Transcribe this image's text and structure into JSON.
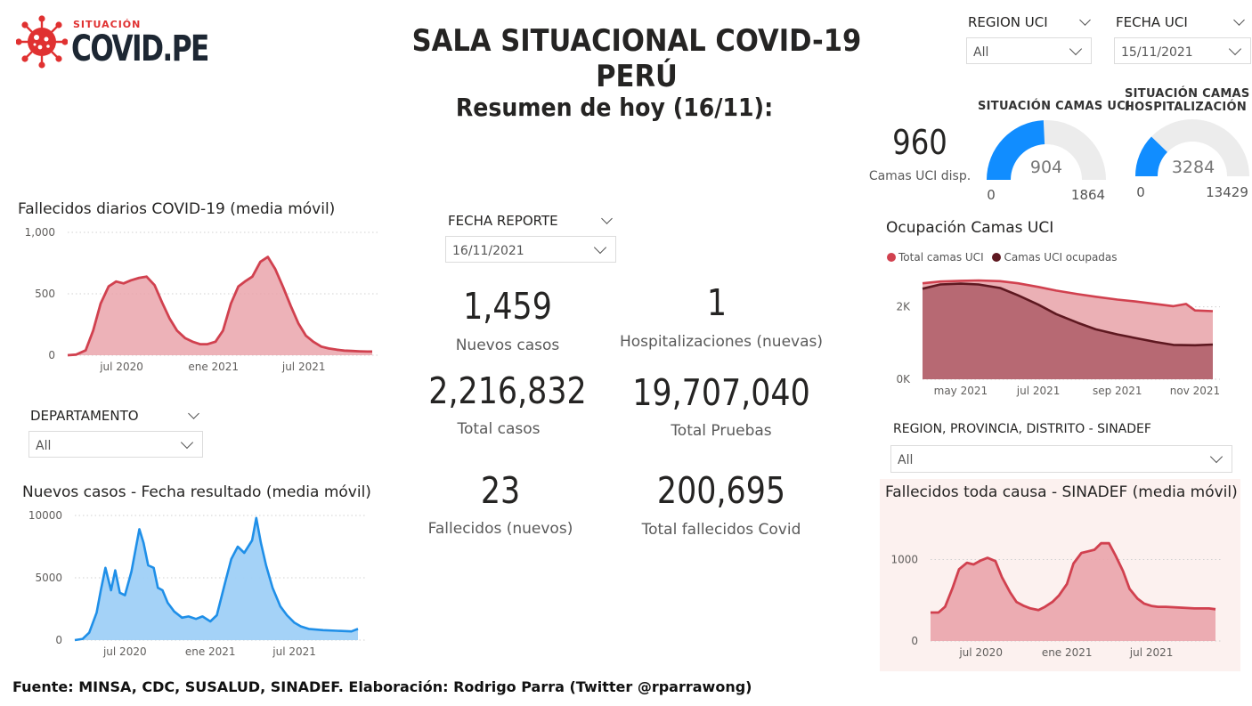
{
  "logo": {
    "small": "SITUACIÓN",
    "big": "COVID.PE"
  },
  "title": "SALA SITUACIONAL COVID-19 PERÚ",
  "subtitle": "Resumen de hoy (16/11):",
  "filters": {
    "region_uci": {
      "label": "REGION UCI",
      "value": "All"
    },
    "fecha_uci": {
      "label": "FECHA UCI",
      "value": "15/11/2021"
    },
    "fecha_reporte": {
      "label": "FECHA REPORTE",
      "value": "16/11/2021"
    },
    "departamento": {
      "label": "DEPARTAMENTO",
      "value": "All"
    },
    "region_sinadef": {
      "label": "REGION, PROVINCIA, DISTRITO - SINADEF",
      "value": "All"
    }
  },
  "kpis": {
    "nuevos_casos": {
      "value": "1,459",
      "label": "Nuevos casos"
    },
    "hospitalizaciones": {
      "value": "1",
      "label": "Hospitalizaciones (nuevas)"
    },
    "total_casos": {
      "value": "2,216,832",
      "label": "Total casos"
    },
    "total_pruebas": {
      "value": "19,707,040",
      "label": "Total Pruebas"
    },
    "fallecidos": {
      "value": "23",
      "label": "Fallecidos (nuevos)"
    },
    "total_fallecidos": {
      "value": "200,695",
      "label": "Total fallecidos Covid"
    },
    "camas_uci": {
      "value": "960",
      "label": "Camas UCI disp."
    }
  },
  "gauges": {
    "uci": {
      "title": "SITUACIÓN CAMAS UCI",
      "value": 904,
      "min": 0,
      "max": 1864,
      "value_label": "904",
      "min_label": "0",
      "max_label": "1864"
    },
    "hosp": {
      "title_1": "SITUACIÓN CAMAS",
      "title_2": "HOSPITALIZACIÓN",
      "value": 3284,
      "min": 0,
      "max": 13429,
      "value_label": "3284",
      "min_label": "0",
      "max_label": "13429"
    }
  },
  "colors": {
    "red": "#d1414f",
    "red_fill": "#eaa4ab",
    "blue": "#1f8fe8",
    "blue_fill": "#9fd0f7",
    "dark_red": "#5e1820",
    "gauge_blue": "#118dff",
    "gauge_bg": "#ececec",
    "sinadef_bg": "#fcf1ef"
  },
  "footer": "Fuente: MINSA, CDC, SUSALUD, SINADEF. Elaboración: Rodrigo Parra (Twitter @rparrawong)",
  "chart_data": [
    {
      "id": "fallecidos",
      "type": "area",
      "title": "Fallecidos diarios COVID-19 (media móvil)",
      "x_start": "2020-03-15",
      "x_end": "2021-11-15",
      "x_ticks": [
        "jul 2020",
        "ene 2021",
        "jul 2021"
      ],
      "y_ticks": [
        "0",
        "500",
        "1,000"
      ],
      "ylim": [
        0,
        1000
      ],
      "x": [
        "2020-03-15",
        "2020-04-01",
        "2020-04-20",
        "2020-05-05",
        "2020-05-20",
        "2020-06-05",
        "2020-06-20",
        "2020-07-05",
        "2020-07-20",
        "2020-08-05",
        "2020-08-20",
        "2020-09-05",
        "2020-09-20",
        "2020-10-05",
        "2020-10-20",
        "2020-11-05",
        "2020-11-20",
        "2020-12-05",
        "2020-12-20",
        "2021-01-05",
        "2021-01-20",
        "2021-02-05",
        "2021-02-20",
        "2021-03-05",
        "2021-03-20",
        "2021-04-05",
        "2021-04-20",
        "2021-05-05",
        "2021-05-20",
        "2021-06-05",
        "2021-06-20",
        "2021-07-05",
        "2021-07-20",
        "2021-08-05",
        "2021-08-20",
        "2021-09-05",
        "2021-09-20",
        "2021-10-05",
        "2021-10-20",
        "2021-11-05",
        "2021-11-15"
      ],
      "y": [
        0,
        5,
        40,
        200,
        420,
        560,
        600,
        585,
        610,
        630,
        640,
        570,
        430,
        300,
        200,
        140,
        110,
        90,
        90,
        110,
        200,
        420,
        560,
        600,
        640,
        760,
        800,
        700,
        560,
        400,
        260,
        160,
        110,
        70,
        55,
        45,
        38,
        35,
        32,
        30,
        30
      ]
    },
    {
      "id": "casos",
      "type": "area",
      "title": "Nuevos casos - Fecha resultado (media móvil)",
      "x_start": "2020-03-15",
      "x_end": "2021-11-15",
      "x_ticks": [
        "jul 2020",
        "ene 2021",
        "jul 2021"
      ],
      "y_ticks": [
        "0",
        "5000",
        "10000"
      ],
      "ylim": [
        0,
        10000
      ],
      "x": [
        "2020-03-15",
        "2020-04-01",
        "2020-04-15",
        "2020-05-01",
        "2020-05-10",
        "2020-05-20",
        "2020-06-01",
        "2020-06-10",
        "2020-06-20",
        "2020-07-01",
        "2020-07-15",
        "2020-08-01",
        "2020-08-10",
        "2020-08-20",
        "2020-09-01",
        "2020-09-10",
        "2020-09-20",
        "2020-10-01",
        "2020-10-15",
        "2020-11-01",
        "2020-11-15",
        "2020-12-01",
        "2020-12-15",
        "2021-01-01",
        "2021-01-15",
        "2021-02-01",
        "2021-02-15",
        "2021-03-01",
        "2021-03-15",
        "2021-04-01",
        "2021-04-10",
        "2021-04-20",
        "2021-05-01",
        "2021-05-15",
        "2021-06-01",
        "2021-06-15",
        "2021-07-01",
        "2021-07-15",
        "2021-08-01",
        "2021-09-01",
        "2021-10-01",
        "2021-11-01",
        "2021-11-15"
      ],
      "y": [
        0,
        100,
        600,
        2200,
        4000,
        5800,
        4000,
        5600,
        3800,
        3600,
        5500,
        8900,
        7800,
        6000,
        5800,
        4200,
        4000,
        3000,
        2300,
        1800,
        1900,
        1700,
        1900,
        1500,
        2000,
        4500,
        6500,
        7500,
        7000,
        8000,
        9800,
        7800,
        6000,
        4200,
        2700,
        2000,
        1400,
        1100,
        900,
        800,
        750,
        700,
        900
      ]
    },
    {
      "id": "uci",
      "type": "area",
      "title": "Ocupación Camas UCI",
      "x_start": "2021-04-01",
      "x_end": "2021-11-15",
      "x_ticks": [
        "may 2021",
        "jul 2021",
        "sep 2021",
        "nov 2021"
      ],
      "y_ticks": [
        "0K",
        "2K"
      ],
      "ylim": [
        0,
        3000
      ],
      "series": [
        {
          "name": "Total camas UCI",
          "x": [
            "2021-04-01",
            "2021-04-15",
            "2021-05-01",
            "2021-05-15",
            "2021-06-01",
            "2021-06-15",
            "2021-07-01",
            "2021-07-15",
            "2021-08-01",
            "2021-08-15",
            "2021-09-01",
            "2021-09-15",
            "2021-10-01",
            "2021-10-15",
            "2021-10-25",
            "2021-11-01",
            "2021-11-15"
          ],
          "values": [
            2650,
            2700,
            2720,
            2730,
            2710,
            2650,
            2550,
            2450,
            2350,
            2280,
            2200,
            2150,
            2080,
            2020,
            2080,
            1900,
            1880
          ]
        },
        {
          "name": "Camas UCI ocupadas",
          "x": [
            "2021-04-01",
            "2021-04-15",
            "2021-05-01",
            "2021-05-15",
            "2021-06-01",
            "2021-06-15",
            "2021-07-01",
            "2021-07-15",
            "2021-08-01",
            "2021-08-15",
            "2021-09-01",
            "2021-09-15",
            "2021-10-01",
            "2021-10-15",
            "2021-11-01",
            "2021-11-15"
          ],
          "values": [
            2500,
            2620,
            2640,
            2620,
            2520,
            2320,
            2060,
            1800,
            1560,
            1380,
            1240,
            1140,
            1030,
            950,
            940,
            960
          ]
        }
      ]
    },
    {
      "id": "sinadef",
      "type": "area",
      "title": "Fallecidos toda causa - SINADEF (media móvil)",
      "x_start": "2020-03-15",
      "x_end": "2021-11-15",
      "x_ticks": [
        "jul 2020",
        "ene 2021",
        "jul 2021"
      ],
      "y_ticks": [
        "0",
        "1000"
      ],
      "ylim": [
        0,
        1300
      ],
      "x": [
        "2020-03-15",
        "2020-04-01",
        "2020-04-15",
        "2020-05-01",
        "2020-05-15",
        "2020-06-01",
        "2020-06-15",
        "2020-07-01",
        "2020-07-15",
        "2020-08-01",
        "2020-08-15",
        "2020-09-01",
        "2020-09-15",
        "2020-10-01",
        "2020-10-15",
        "2020-11-01",
        "2020-11-15",
        "2020-12-01",
        "2020-12-15",
        "2021-01-01",
        "2021-01-15",
        "2021-02-01",
        "2021-02-15",
        "2021-03-01",
        "2021-03-15",
        "2021-04-01",
        "2021-04-15",
        "2021-05-01",
        "2021-05-15",
        "2021-06-01",
        "2021-06-15",
        "2021-07-01",
        "2021-07-15",
        "2021-08-01",
        "2021-09-01",
        "2021-10-01",
        "2021-11-01",
        "2021-11-15"
      ],
      "y": [
        350,
        350,
        420,
        650,
        880,
        960,
        940,
        990,
        1020,
        980,
        780,
        600,
        480,
        430,
        400,
        380,
        420,
        480,
        560,
        700,
        950,
        1080,
        1100,
        1120,
        1200,
        1200,
        1050,
        860,
        640,
        520,
        460,
        430,
        420,
        420,
        410,
        400,
        400,
        390
      ]
    }
  ]
}
